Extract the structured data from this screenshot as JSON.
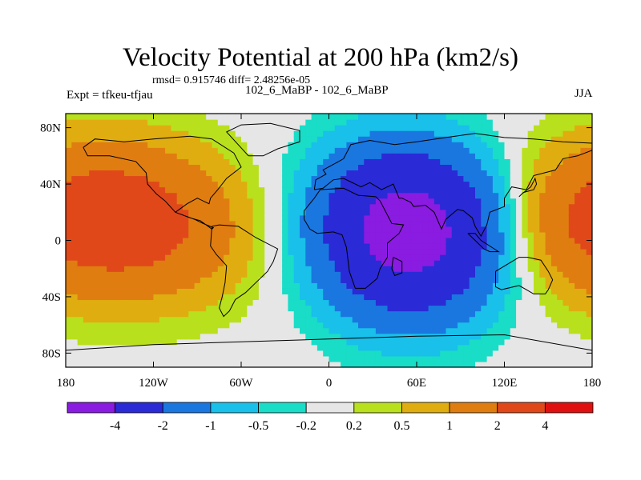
{
  "chart_data": {
    "type": "heatmap",
    "title": "Velocity Potential at 200 hPa (km2/s)",
    "stats": "rmsd= 0.915746 diff= 2.48256e-05",
    "left_label": "Expt = tfkeu-tfjau",
    "center_label": "102_6_MaBP - 102_6_MaBP",
    "right_label": "JJA",
    "x_ticks": [
      {
        "value": -180,
        "label": "180"
      },
      {
        "value": -120,
        "label": "120W"
      },
      {
        "value": -60,
        "label": "60W"
      },
      {
        "value": 0,
        "label": "0"
      },
      {
        "value": 60,
        "label": "60E"
      },
      {
        "value": 120,
        "label": "120E"
      },
      {
        "value": 180,
        "label": "180"
      }
    ],
    "y_ticks": [
      {
        "value": 80,
        "label": "80N"
      },
      {
        "value": 40,
        "label": "40N"
      },
      {
        "value": 0,
        "label": "0"
      },
      {
        "value": -40,
        "label": "40S"
      },
      {
        "value": -80,
        "label": "80S"
      }
    ],
    "xlim": [
      -180,
      180
    ],
    "ylim": [
      -90,
      90
    ],
    "field_centers": [
      {
        "lon": 60,
        "lat": 10,
        "amp": -3.0
      },
      {
        "lon": 40,
        "lat": 20,
        "amp": -1.4
      },
      {
        "lon": 55,
        "lat": -20,
        "amp": -1.2
      },
      {
        "lon": -135,
        "lat": 15,
        "amp": 1.8
      },
      {
        "lon": -85,
        "lat": 5,
        "amp": 0.7
      },
      {
        "lon": 175,
        "lat": 15,
        "amp": 1.6
      }
    ],
    "colorbar": {
      "levels": [
        "-4",
        "-2",
        "-1",
        "-0.5",
        "-0.2",
        "0.2",
        "0.5",
        "1",
        "2",
        "4"
      ],
      "colors": [
        "#8a1be0",
        "#2a2ad6",
        "#1a77e0",
        "#19c0ea",
        "#19ddc7",
        "#e6e6e6",
        "#b9e01c",
        "#e0ad11",
        "#e07d11",
        "#e0481a",
        "#e01010"
      ]
    },
    "grid": false,
    "legend": "bottom"
  }
}
